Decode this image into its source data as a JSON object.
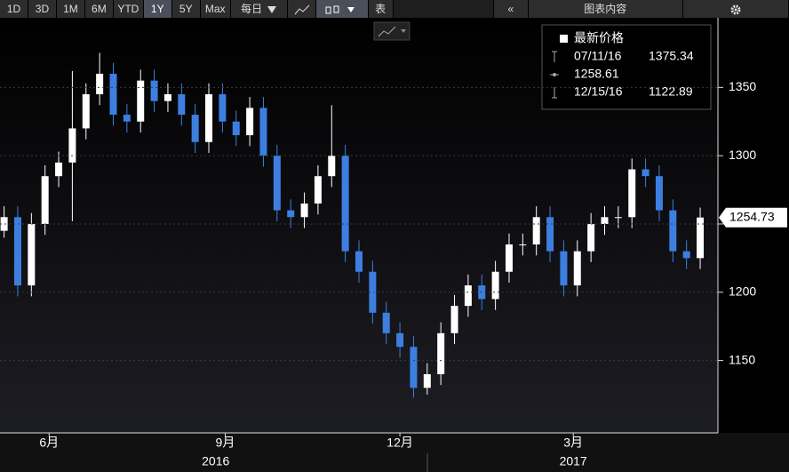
{
  "toolbar": {
    "ranges": [
      "1D",
      "3D",
      "1M",
      "6M",
      "YTD",
      "1Y",
      "5Y",
      "Max"
    ],
    "selected_range": "1Y",
    "frequency": "每日",
    "table": "表",
    "collapse": "«",
    "chart_contents": "图表内容"
  },
  "chart_data": {
    "type": "candlestick",
    "x": [
      0,
      1,
      2,
      3,
      4,
      5,
      6,
      7,
      8,
      9,
      10,
      11,
      12,
      13,
      14,
      15,
      16,
      17,
      18,
      19,
      20,
      21,
      22,
      23,
      24,
      25,
      26,
      27,
      28,
      29,
      30,
      31,
      32,
      33,
      34,
      35,
      36,
      37,
      38,
      39,
      40,
      41,
      42,
      43,
      44,
      45,
      46,
      47,
      48,
      49,
      50,
      51
    ],
    "open": [
      1245,
      1255,
      1205,
      1250,
      1285,
      1295,
      1320,
      1345,
      1360,
      1330,
      1325,
      1355,
      1340,
      1345,
      1330,
      1310,
      1345,
      1325,
      1315,
      1335,
      1300,
      1260,
      1255,
      1265,
      1285,
      1300,
      1230,
      1215,
      1185,
      1170,
      1160,
      1130,
      1140,
      1170,
      1190,
      1205,
      1195,
      1215,
      1235,
      1235,
      1255,
      1230,
      1205,
      1230,
      1250,
      1255,
      1255,
      1290,
      1285,
      1260,
      1230,
      1225
    ],
    "high": [
      1263,
      1263,
      1258,
      1293,
      1303,
      1362,
      1353,
      1375.34,
      1368,
      1338,
      1363,
      1363,
      1353,
      1353,
      1338,
      1353,
      1353,
      1333,
      1343,
      1343,
      1308,
      1268,
      1273,
      1293,
      1337,
      1308,
      1238,
      1223,
      1193,
      1178,
      1168,
      1148,
      1178,
      1198,
      1213,
      1213,
      1223,
      1243,
      1243,
      1263,
      1263,
      1238,
      1238,
      1258,
      1263,
      1263,
      1298,
      1298,
      1293,
      1268,
      1238,
      1262
    ],
    "low": [
      1240,
      1197,
      1197,
      1242,
      1277,
      1252,
      1312,
      1337,
      1322,
      1317,
      1317,
      1332,
      1332,
      1322,
      1302,
      1302,
      1317,
      1307,
      1307,
      1292,
      1252,
      1247,
      1247,
      1257,
      1277,
      1222,
      1207,
      1177,
      1162,
      1152,
      1122.89,
      1125,
      1132,
      1162,
      1182,
      1187,
      1187,
      1207,
      1227,
      1227,
      1222,
      1197,
      1197,
      1222,
      1242,
      1247,
      1247,
      1277,
      1252,
      1222,
      1217,
      1217
    ],
    "close": [
      1255,
      1205,
      1250,
      1285,
      1295,
      1320,
      1345,
      1360,
      1330,
      1325,
      1355,
      1340,
      1345,
      1330,
      1310,
      1345,
      1325,
      1315,
      1335,
      1300,
      1260,
      1255,
      1265,
      1285,
      1300,
      1230,
      1215,
      1185,
      1170,
      1160,
      1130,
      1140,
      1170,
      1190,
      1205,
      1195,
      1215,
      1235,
      1235,
      1255,
      1230,
      1205,
      1230,
      1250,
      1255,
      1255,
      1290,
      1285,
      1260,
      1230,
      1225,
      1254.73
    ],
    "up_color": "#ffffff",
    "down_color": "#3d7fe0",
    "xlim": [
      -0.3,
      52.3
    ],
    "xticks": [
      {
        "value": 3.3,
        "label": "6月"
      },
      {
        "value": 16.2,
        "label": "9月"
      },
      {
        "value": 29.0,
        "label": "12月"
      },
      {
        "value": 41.7,
        "label": "3月"
      }
    ],
    "x_year_labels": [
      {
        "value": 15.5,
        "label": "2016"
      },
      {
        "value": 41.7,
        "label": "2017"
      }
    ],
    "ylim": [
      1097,
      1401
    ],
    "yticks": [
      1150,
      1200,
      1250,
      1300,
      1350
    ],
    "grid": true,
    "last_price": 1254.73,
    "legend": {
      "title": "最新价格",
      "high_date": "07/11/16",
      "high": 1375.34,
      "average": 1258.61,
      "low_date": "12/15/16",
      "low": 1122.89
    }
  }
}
